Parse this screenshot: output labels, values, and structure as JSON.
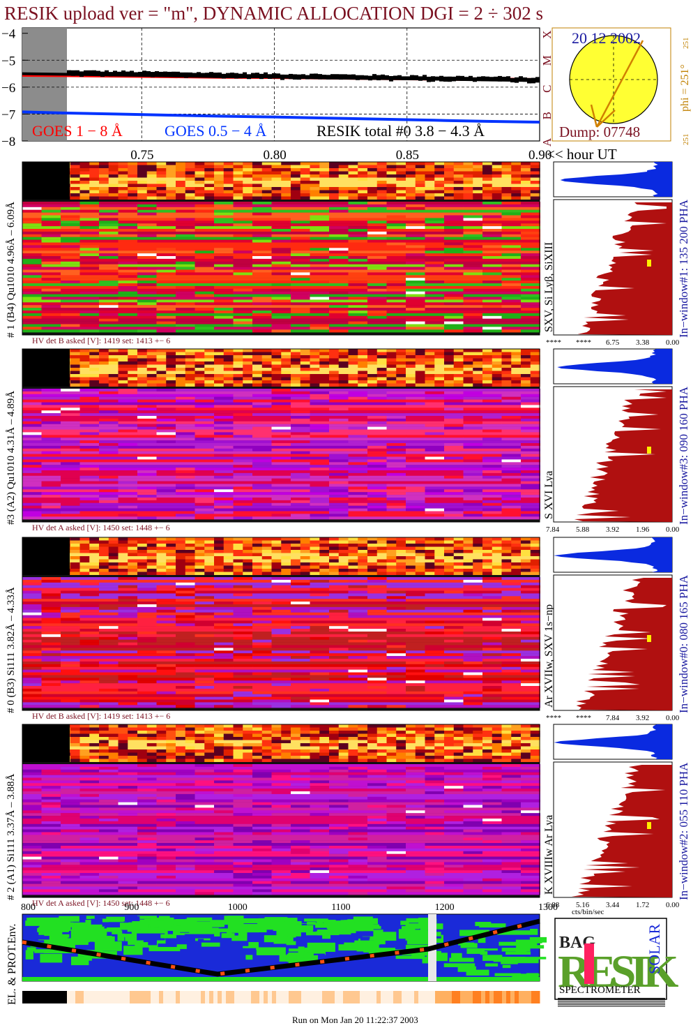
{
  "title": "RESIK upload ver = \"m\", DYNAMIC ALLOCATION  DGI =   2 ÷ 302 s",
  "colors": {
    "title": "#7a1020",
    "goes_long": "#ff0000",
    "goes_short": "#0033ff",
    "resik": "#000000",
    "side": "#c08000",
    "hv": "#7a1020",
    "blue_text": "#1a1aa0",
    "sun": "#ffff33",
    "hist": "#b01010",
    "histtop": "#0a2ae0"
  },
  "goes_panel": {
    "yticks": [
      "−4",
      "−5",
      "−6",
      "−7",
      "−8"
    ],
    "class_letters": [
      "X",
      "M",
      "C",
      "B",
      "A"
    ],
    "legend_goes_long": "GOES 1 − 8 Å",
    "legend_goes_short": "GOES 0.5 − 4 Å",
    "legend_resik": "RESIK total #0  3.8 − 4.3 Å",
    "xticks": [
      "0.75",
      "0.80",
      "0.85",
      "0.90"
    ],
    "xunit": "<< hour UT"
  },
  "sun_panel": {
    "date": "20 12 2002",
    "dump": "Dump: 07748",
    "phi": "phi = 251°",
    "phi_top": "251",
    "phi_bottom": "251"
  },
  "channels": [
    {
      "id": "ch1",
      "left_label": "# 1 (B4) Qu1010 4.96Å – 6.09Å",
      "lines": "SXV, Si Lyβ, SiXIII",
      "window": "In−window#1:  135 200 PHA",
      "hv": "HV det B asked [V]:  1419 set:  1413 +−    6",
      "hist_ticks": [
        "****",
        "****",
        "6.75",
        "3.38",
        "0.00"
      ]
    },
    {
      "id": "ch3",
      "left_label": "#3 (A2) Qu1010  4.31Å – 4.89Å",
      "lines": "S XVI Lya",
      "window": "In−window#3:  090 160 PHA",
      "hv": "HV det A asked [V]:  1450 set:  1448 +−    6",
      "hist_ticks": [
        "7.84",
        "5.88",
        "3.92",
        "1.96",
        "0.00"
      ]
    },
    {
      "id": "ch0",
      "left_label": "# 0 (B3) Si111  3.82Å – 4.33Å",
      "lines": "Ar XVIIw, SXV 1s−np",
      "window": "In−window#0:  080 165 PHA",
      "hv": "HV det B asked [V]:  1419 set:  1413 +−    6",
      "hist_ticks": [
        "****",
        "****",
        "7.84",
        "3.92",
        "0.00"
      ]
    },
    {
      "id": "ch2",
      "left_label": "# 2 (A1) Si111  3.37Å – 3.88Å",
      "lines": "K XVIIIw  Ar Lya",
      "window": "In−window#2:  055 110 PHA",
      "hv": "HV det A asked [V]:  1450 set:  1448 +−    6",
      "hist_ticks": [
        "6.88",
        "5.16",
        "3.44",
        "1.72",
        "0.00"
      ]
    }
  ],
  "hist_xlabel": "cts/bin/sec",
  "bottom": {
    "xticks": [
      "800",
      "900",
      "1000",
      "1100",
      "1200",
      "1300"
    ],
    "ylabel": "EL. & PROT.Env.",
    "footer": "Run on Mon Jan 20 11:22:37 2003"
  },
  "logo": {
    "big": "RESIK",
    "bag": "BAG",
    "solar": "SOLAR",
    "word": "SPECTROMETER"
  },
  "chart_data": {
    "type": "line",
    "title": "RESIK upload ver = \"m\", DYNAMIC ALLOCATION  DGI =   2 ÷ 302 s",
    "xlabel": "<< hour UT",
    "ylabel": "",
    "xlim": [
      0.705,
      0.9
    ],
    "ylim": [
      -8,
      -3.8
    ],
    "x": [
      0.705,
      0.72,
      0.74,
      0.76,
      0.78,
      0.8,
      0.82,
      0.84,
      0.86,
      0.88,
      0.9
    ],
    "series": [
      {
        "name": "GOES 1 − 8 Å",
        "values": [
          -5.55,
          -5.56,
          -5.58,
          -5.6,
          -5.62,
          -5.63,
          -5.65,
          -5.67,
          -5.69,
          -5.71,
          -5.73
        ]
      },
      {
        "name": "GOES 0.5 − 4 Å",
        "values": [
          -6.92,
          -6.96,
          -7.0,
          -7.04,
          -7.08,
          -7.11,
          -7.15,
          -7.19,
          -7.23,
          -7.27,
          -7.3
        ]
      },
      {
        "name": "RESIK total #0  3.8 − 4.3 Å",
        "values": [
          -5.5,
          -5.52,
          -5.55,
          -5.58,
          -5.61,
          -5.62,
          -5.66,
          -5.68,
          -5.7,
          -5.73,
          -5.76
        ]
      }
    ]
  }
}
